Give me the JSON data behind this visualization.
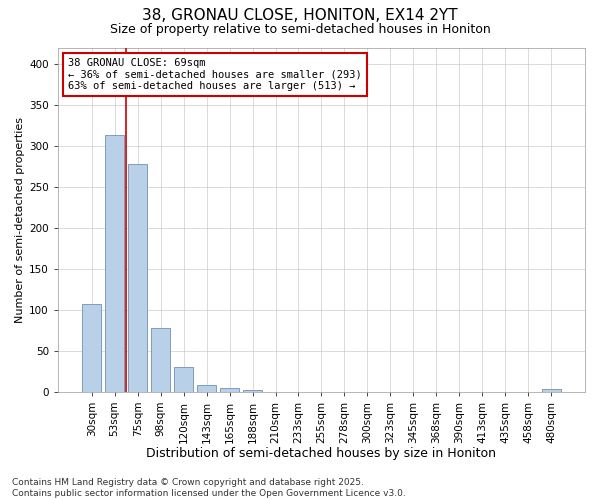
{
  "title_line1": "38, GRONAU CLOSE, HONITON, EX14 2YT",
  "title_line2": "Size of property relative to semi-detached houses in Honiton",
  "xlabel": "Distribution of semi-detached houses by size in Honiton",
  "ylabel": "Number of semi-detached properties",
  "categories": [
    "30sqm",
    "53sqm",
    "75sqm",
    "98sqm",
    "120sqm",
    "143sqm",
    "165sqm",
    "188sqm",
    "210sqm",
    "233sqm",
    "255sqm",
    "278sqm",
    "300sqm",
    "323sqm",
    "345sqm",
    "368sqm",
    "390sqm",
    "413sqm",
    "435sqm",
    "458sqm",
    "480sqm"
  ],
  "values": [
    107,
    313,
    278,
    78,
    30,
    8,
    4,
    2,
    0,
    0,
    0,
    0,
    0,
    0,
    0,
    0,
    0,
    0,
    0,
    0,
    3
  ],
  "bar_color": "#b8d0e8",
  "bar_edge_color": "#7090b0",
  "vline_x_index": 1.5,
  "vline_color": "#cc0000",
  "annotation_text": "38 GRONAU CLOSE: 69sqm\n← 36% of semi-detached houses are smaller (293)\n63% of semi-detached houses are larger (513) →",
  "annotation_box_color": "#ffffff",
  "annotation_box_edge": "#cc0000",
  "ylim": [
    0,
    420
  ],
  "yticks": [
    0,
    50,
    100,
    150,
    200,
    250,
    300,
    350,
    400
  ],
  "grid_color": "#cccccc",
  "bg_color": "#ffffff",
  "footnote": "Contains HM Land Registry data © Crown copyright and database right 2025.\nContains public sector information licensed under the Open Government Licence v3.0.",
  "title_fontsize": 11,
  "subtitle_fontsize": 9,
  "xlabel_fontsize": 9,
  "ylabel_fontsize": 8,
  "tick_fontsize": 7.5,
  "annotation_fontsize": 7.5,
  "footnote_fontsize": 6.5
}
